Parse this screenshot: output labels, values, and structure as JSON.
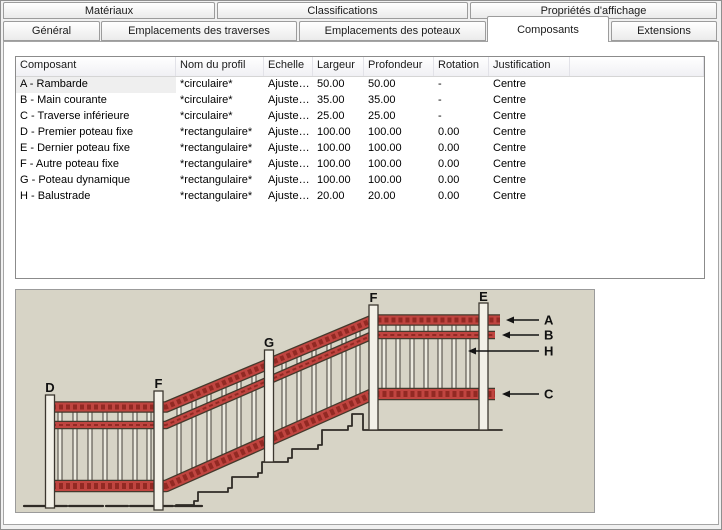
{
  "tabs_row1": [
    {
      "label": "Matériaux"
    },
    {
      "label": "Classifications"
    },
    {
      "label": "Propriétés d'affichage"
    }
  ],
  "tabs_row2": [
    {
      "label": "Général"
    },
    {
      "label": "Emplacements des traverses"
    },
    {
      "label": "Emplacements des poteaux"
    },
    {
      "label": "Composants",
      "active": true
    },
    {
      "label": "Extensions"
    }
  ],
  "table": {
    "columns": [
      "Composant",
      "Nom du profil",
      "Echelle",
      "Largeur",
      "Profondeur",
      "Rotation",
      "Justification"
    ],
    "rows": [
      [
        "A - Rambarde",
        "*circulaire*",
        "Ajuste…",
        "50.00",
        "50.00",
        "-",
        "Centre"
      ],
      [
        "B - Main courante",
        "*circulaire*",
        "Ajuste…",
        "35.00",
        "35.00",
        "-",
        "Centre"
      ],
      [
        "C - Traverse inférieure",
        "*circulaire*",
        "Ajuste…",
        "25.00",
        "25.00",
        "-",
        "Centre"
      ],
      [
        "D - Premier poteau fixe",
        "*rectangulaire*",
        "Ajuste…",
        "100.00",
        "100.00",
        "0.00",
        "Centre"
      ],
      [
        "E - Dernier poteau fixe",
        "*rectangulaire*",
        "Ajuste…",
        "100.00",
        "100.00",
        "0.00",
        "Centre"
      ],
      [
        "F - Autre poteau fixe",
        "*rectangulaire*",
        "Ajuste…",
        "100.00",
        "100.00",
        "0.00",
        "Centre"
      ],
      [
        "G - Poteau dynamique",
        "*rectangulaire*",
        "Ajuste…",
        "100.00",
        "100.00",
        "0.00",
        "Centre"
      ],
      [
        "H - Balustrade",
        "*rectangulaire*",
        "Ajuste…",
        "20.00",
        "20.00",
        "0.00",
        "Centre"
      ]
    ]
  },
  "diagram": {
    "post_labels": [
      "D",
      "F",
      "G",
      "F",
      "E"
    ],
    "arrow_labels": [
      "A",
      "B",
      "H",
      "C"
    ],
    "colors": {
      "background": "#d7d4c6",
      "rail_red": "#c04540",
      "rail_dark_red": "#8a241f",
      "outline": "#44392c",
      "post_fill": "#f3f1e8",
      "ink": "#2f2b26"
    }
  }
}
